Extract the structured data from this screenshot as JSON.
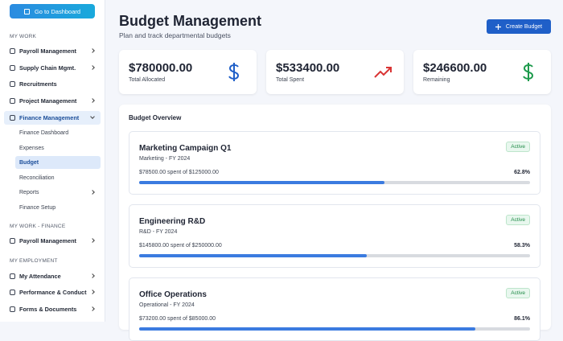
{
  "sidebar": {
    "button": "Go to Dashboard",
    "sections": [
      {
        "heading": "MY WORK",
        "items": [
          {
            "label": "Payroll Management",
            "expandable": true
          },
          {
            "label": "Supply Chain Mgmt.",
            "expandable": true
          },
          {
            "label": "Recruitments",
            "expandable": false
          },
          {
            "label": "Project Management",
            "expandable": true
          },
          {
            "label": "Finance Management",
            "expandable": true,
            "expanded": true,
            "children": [
              {
                "label": "Finance Dashboard"
              },
              {
                "label": "Expenses"
              },
              {
                "label": "Budget",
                "active": true
              },
              {
                "label": "Reconciliation"
              },
              {
                "label": "Reports",
                "expandable": true
              },
              {
                "label": "Finance Setup"
              }
            ]
          }
        ]
      },
      {
        "heading": "MY WORK - FINANCE",
        "items": [
          {
            "label": "Payroll Management",
            "expandable": true
          }
        ]
      },
      {
        "heading": "MY EMPLOYMENT",
        "items": [
          {
            "label": "My Attendance",
            "expandable": true
          },
          {
            "label": "Performance & Conduct",
            "expandable": true
          },
          {
            "label": "Forms & Documents",
            "expandable": true
          }
        ]
      }
    ]
  },
  "header": {
    "title": "Budget Management",
    "subtitle": "Plan and track departmental budgets",
    "button": "Create Budget"
  },
  "stats": [
    {
      "value": "$780000.00",
      "label": "Total Allocated"
    },
    {
      "value": "$533400.00",
      "label": "Total Spent"
    },
    {
      "value": "$246600.00",
      "label": "Remaining"
    }
  ],
  "overview": {
    "title": "Budget Overview",
    "budgets": [
      {
        "name": "Marketing Campaign Q1",
        "period": "Marketing - FY 2024",
        "status": "Active",
        "spent": "$78500.00 spent of $125000.00",
        "percent": 62.8,
        "percent_label": "62.8%"
      },
      {
        "name": "Engineering R&D",
        "period": "R&D - FY 2024",
        "status": "Active",
        "spent": "$145800.00 spent of $250000.00",
        "percent": 58.3,
        "percent_label": "58.3%"
      },
      {
        "name": "Office Operations",
        "period": "Operational - FY 2024",
        "status": "Active",
        "spent": "$73200.00 spent of $85000.00",
        "percent": 86.1,
        "percent_label": "86.1%"
      }
    ]
  }
}
